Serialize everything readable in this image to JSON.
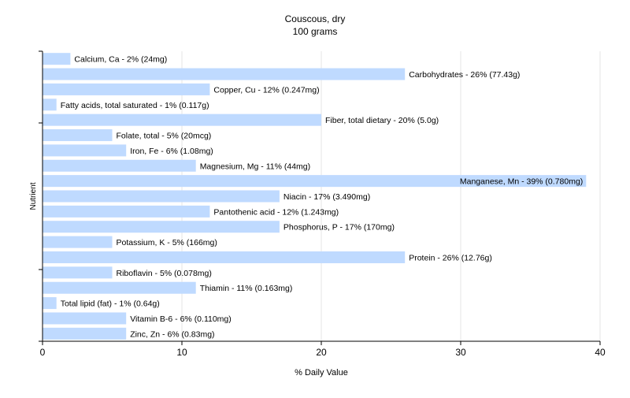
{
  "chart_data": {
    "type": "bar",
    "orientation": "horizontal",
    "title": "Couscous, dry",
    "subtitle": "100 grams",
    "xlabel": "% Daily Value",
    "ylabel": "Nutrient",
    "xlim": [
      0,
      40
    ],
    "xticks": [
      0,
      10,
      20,
      30,
      40
    ],
    "grid": true,
    "bar_color": "#bfdaff",
    "categories": [
      "Calcium, Ca",
      "Carbohydrates",
      "Copper, Cu",
      "Fatty acids, total saturated",
      "Fiber, total dietary",
      "Folate, total",
      "Iron, Fe",
      "Magnesium, Mg",
      "Manganese, Mn",
      "Niacin",
      "Pantothenic acid",
      "Phosphorus, P",
      "Potassium, K",
      "Protein",
      "Riboflavin",
      "Thiamin",
      "Total lipid (fat)",
      "Vitamin B-6",
      "Zinc, Zn"
    ],
    "values": [
      2,
      26,
      12,
      1,
      20,
      5,
      6,
      11,
      39,
      17,
      12,
      17,
      5,
      26,
      5,
      11,
      1,
      6,
      6
    ],
    "labels": [
      "Calcium, Ca - 2% (24mg)",
      "Carbohydrates - 26% (77.43g)",
      "Copper, Cu - 12% (0.247mg)",
      "Fatty acids, total saturated - 1% (0.117g)",
      "Fiber, total dietary - 20% (5.0g)",
      "Folate, total - 5% (20mcg)",
      "Iron, Fe - 6% (1.08mg)",
      "Magnesium, Mg - 11% (44mg)",
      "Manganese, Mn - 39% (0.780mg)",
      "Niacin - 17% (3.490mg)",
      "Pantothenic acid - 12% (1.243mg)",
      "Phosphorus, P - 17% (170mg)",
      "Potassium, K - 5% (166mg)",
      "Protein - 26% (12.76g)",
      "Riboflavin - 5% (0.078mg)",
      "Thiamin - 11% (0.163mg)",
      "Total lipid (fat) - 1% (0.64g)",
      "Vitamin B-6 - 6% (0.110mg)",
      "Zinc, Zn - 6% (0.83mg)"
    ]
  }
}
